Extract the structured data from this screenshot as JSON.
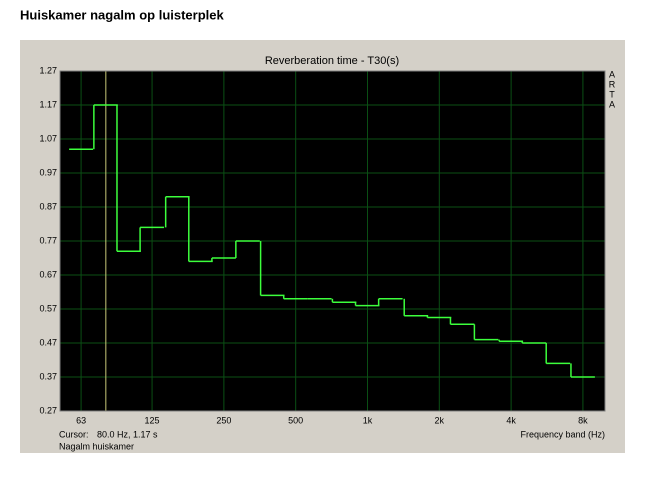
{
  "page_title": "Huiskamer nagalm op luisterplek",
  "chart_data": {
    "type": "step",
    "title": "Reverberation time - T30(s)",
    "x_label": "Frequency band (Hz)",
    "brand": "ARTA",
    "series_label": "Nagalm huiskamer",
    "cursor": {
      "label": "Cursor:",
      "text": "80.0 Hz, 1.17 s",
      "x": 80
    },
    "x": [
      63,
      80,
      100,
      125,
      160,
      200,
      250,
      315,
      400,
      500,
      630,
      800,
      1000,
      1250,
      1600,
      2000,
      2500,
      3150,
      4000,
      5000,
      6300,
      8000
    ],
    "values": [
      1.04,
      1.17,
      0.74,
      0.81,
      0.9,
      0.71,
      0.72,
      0.77,
      0.61,
      0.6,
      0.6,
      0.59,
      0.58,
      0.6,
      0.55,
      0.545,
      0.525,
      0.48,
      0.475,
      0.47,
      0.41,
      0.37
    ],
    "color": "#3cff3c",
    "cursor_color": "#c8c878",
    "grid_color": "#0b4f14",
    "background": "#000000",
    "xlog": true,
    "xlim": [
      51.4,
      9900
    ],
    "xticks": [
      63,
      125,
      250,
      500,
      {
        "value": 1000,
        "label": "1k"
      },
      {
        "value": 2000,
        "label": "2k"
      },
      {
        "value": 4000,
        "label": "4k"
      },
      {
        "value": 8000,
        "label": "8k"
      }
    ],
    "ylim": [
      0.27,
      1.27
    ],
    "yticks": [
      0.27,
      0.37,
      0.47,
      0.57,
      0.67,
      0.77,
      0.87,
      0.97,
      1.07,
      1.17,
      1.27
    ],
    "grid": true
  }
}
